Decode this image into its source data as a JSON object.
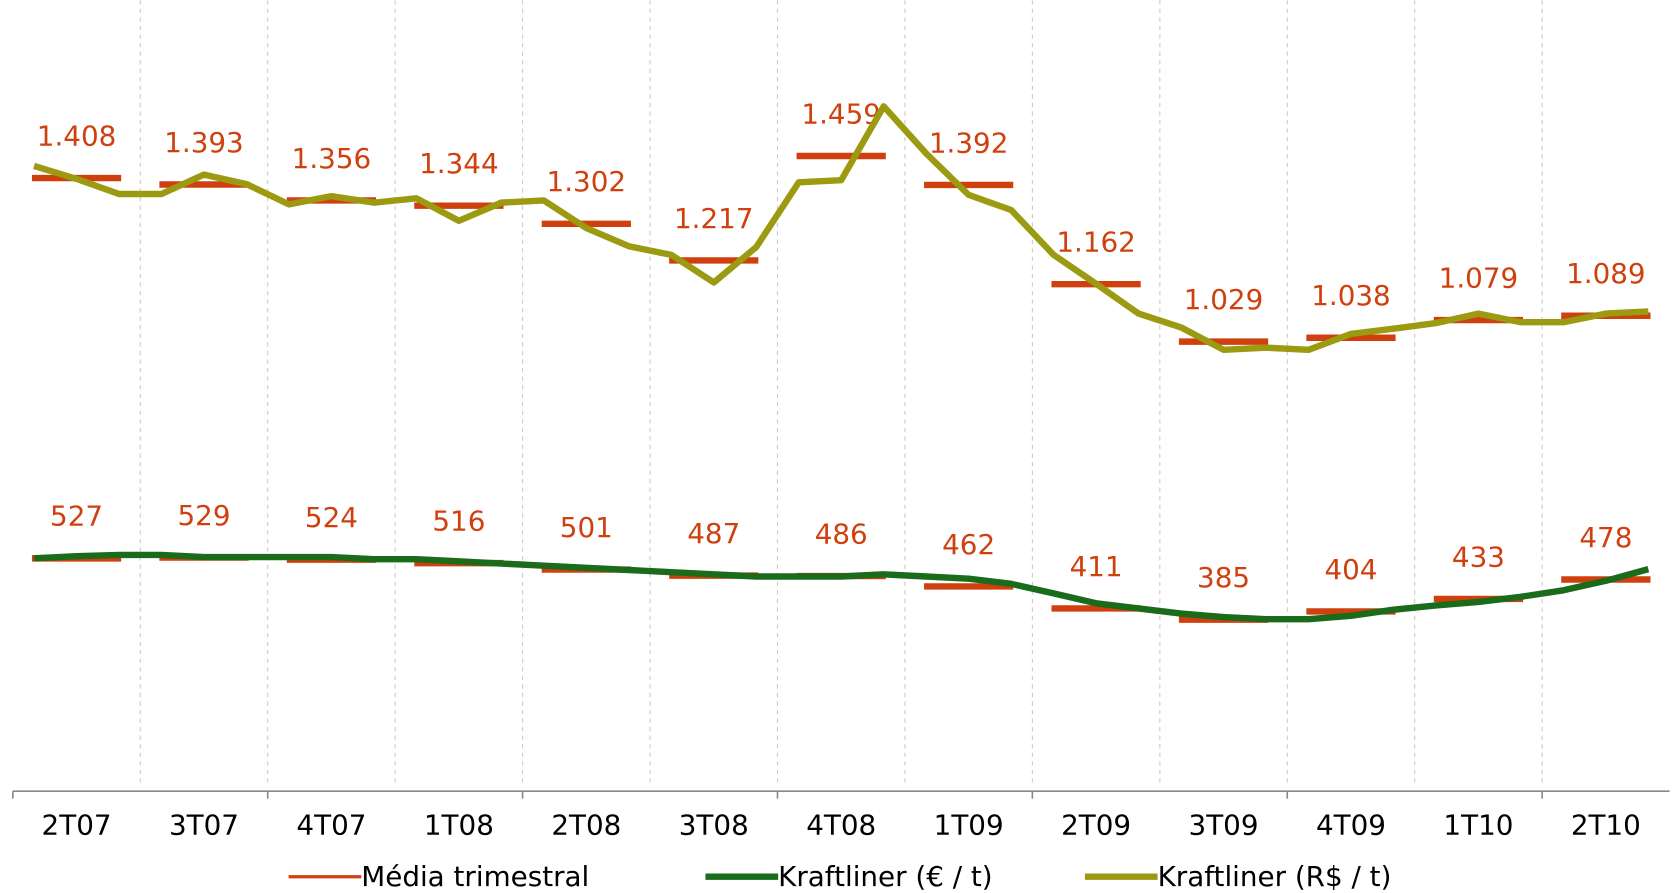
{
  "chart_data": {
    "type": "line",
    "categories": [
      "2T07",
      "3T07",
      "4T07",
      "1T08",
      "2T08",
      "3T08",
      "4T08",
      "1T09",
      "2T09",
      "3T09",
      "4T09",
      "1T10",
      "2T10"
    ],
    "ylim": [
      0,
      1800
    ],
    "series": [
      {
        "name": "Média trimestral",
        "color": "#d0400f",
        "style": "quarter-segment",
        "values": [
          1408,
          1393,
          1356,
          1344,
          1302,
          1217,
          1459,
          1392,
          1162,
          1029,
          1038,
          1079,
          1089
        ],
        "value_labels": [
          "1.408",
          "1.393",
          "1.356",
          "1.344",
          "1.302",
          "1.217",
          "1.459",
          "1.392",
          "1.162",
          "1.029",
          "1.038",
          "1.079",
          "1.089"
        ],
        "values2": [
          527,
          529,
          524,
          516,
          501,
          487,
          486,
          462,
          411,
          385,
          404,
          433,
          478
        ]
      },
      {
        "name": "Kraftliner (€ / t)",
        "color": "#1a6b1a",
        "values": [
          [
            527,
            532,
            535
          ],
          [
            535,
            530,
            530
          ],
          [
            530,
            530,
            525
          ],
          [
            525,
            520,
            515
          ],
          [
            510,
            505,
            500
          ],
          [
            495,
            490,
            485
          ],
          [
            485,
            485,
            490
          ],
          [
            485,
            480,
            468
          ],
          [
            446,
            423,
            411
          ],
          [
            399,
            391,
            386
          ],
          [
            386,
            394,
            408
          ],
          [
            418,
            426,
            438
          ],
          [
            453,
            475,
            502
          ]
        ]
      },
      {
        "name": "Kraftliner (R$ / t)",
        "color": "#9b9a10",
        "values": [
          [
            1436,
            1406,
            1371
          ],
          [
            1371,
            1416,
            1394
          ],
          [
            1347,
            1366,
            1351
          ],
          [
            1361,
            1309,
            1351
          ],
          [
            1356,
            1292,
            1250
          ],
          [
            1230,
            1166,
            1248
          ],
          [
            1398,
            1403,
            1574
          ],
          [
            1465,
            1369,
            1334
          ],
          [
            1230,
            1163,
            1094
          ],
          [
            1062,
            1010,
            1015
          ],
          [
            1010,
            1047,
            1059
          ],
          [
            1072,
            1094,
            1074
          ],
          [
            1074,
            1094,
            1099
          ]
        ]
      }
    ]
  }
}
